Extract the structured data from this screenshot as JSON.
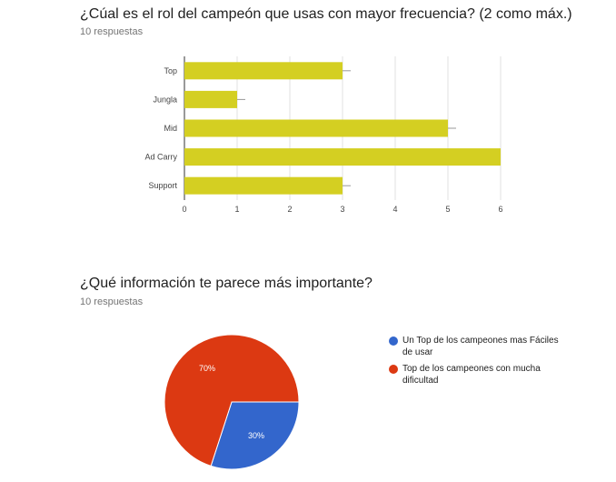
{
  "questions": [
    {
      "title": "¿Cúal es el rol del campeón que usas con mayor frecuencia? (2 como máx.)",
      "responses": "10 respuestas"
    },
    {
      "title": "¿Qué información te parece más importante?",
      "responses": "10 respuestas"
    }
  ],
  "colors": {
    "bar": "#d4cf22",
    "blue": "#3366cc",
    "red": "#dc3912"
  },
  "chart_data": [
    {
      "type": "bar",
      "orientation": "horizontal",
      "categories": [
        "Top",
        "Jungla",
        "Mid",
        "Ad Carry",
        "Support"
      ],
      "values": [
        3,
        1,
        5,
        6,
        3
      ],
      "xlim": [
        0,
        6
      ],
      "xticks": [
        "0",
        "1",
        "2",
        "3",
        "4",
        "5",
        "6"
      ],
      "grid": true
    },
    {
      "type": "pie",
      "labels": [
        "Un Top de los campeones mas Fáciles de usar",
        "Top de los campeones con mucha dificultad"
      ],
      "values": [
        30,
        70
      ],
      "slice_labels": [
        "30%",
        "70%"
      ],
      "colors": [
        "#3366cc",
        "#dc3912"
      ],
      "legend": "right"
    }
  ]
}
